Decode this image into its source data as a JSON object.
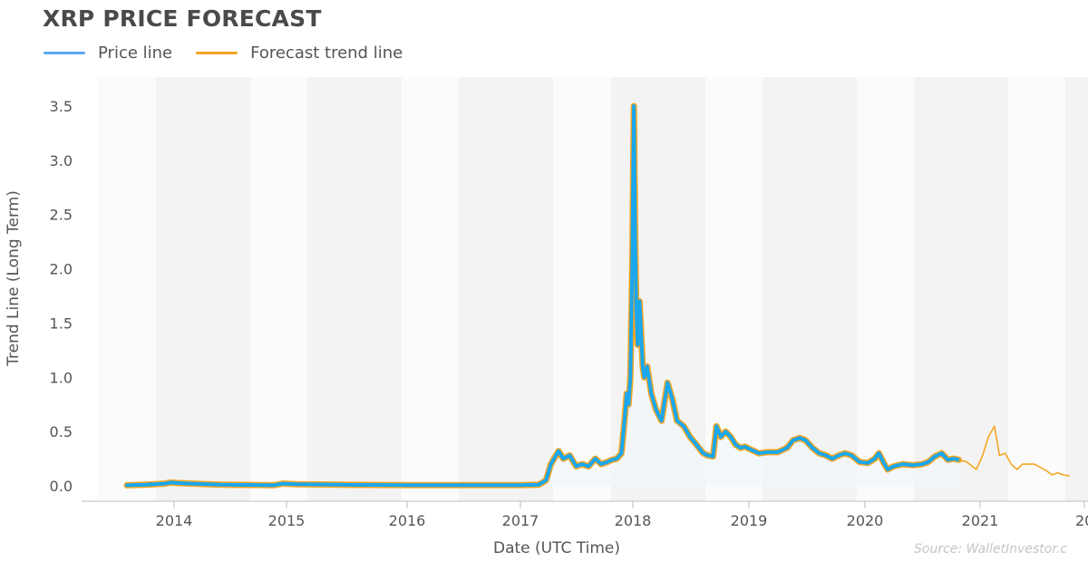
{
  "title": "XRP PRICE FORECAST",
  "legend": [
    {
      "label": "Price line",
      "color": "#5aa9f2"
    },
    {
      "label": "Forecast trend line",
      "color": "#f5a623"
    }
  ],
  "source": "Source: WalletInvestor.c",
  "chart_data": {
    "type": "line",
    "title": "XRP PRICE FORECAST",
    "xlabel": "Date (UTC Time)",
    "ylabel": "Trend Line (Long Term)",
    "ylim": [
      0,
      3.5
    ],
    "yticks": [
      "0.0",
      "0.5",
      "1.0",
      "1.5",
      "2.0",
      "2.5",
      "3.0",
      "3.5"
    ],
    "xticks": [
      "2014",
      "2015",
      "2016",
      "2017",
      "2018",
      "2019",
      "2020",
      "2021",
      "20"
    ],
    "grid": "alternating year bands",
    "legend_position": "top-left",
    "colors": {
      "price": "#1aa7ee",
      "forecast": "#f5a623",
      "band": "#f3f3f3"
    },
    "series": [
      {
        "name": "Price line",
        "x": [
          "2013-08-01",
          "2013-10-01",
          "2013-12-01",
          "2013-12-20",
          "2014-01-15",
          "2014-03-01",
          "2014-06-01",
          "2014-09-01",
          "2014-11-20",
          "2014-12-20",
          "2015-02-01",
          "2015-06-01",
          "2015-09-01",
          "2016-01-01",
          "2016-06-01",
          "2016-09-01",
          "2017-01-01",
          "2017-03-01",
          "2017-03-25",
          "2017-04-10",
          "2017-05-05",
          "2017-05-20",
          "2017-06-10",
          "2017-07-01",
          "2017-07-20",
          "2017-08-10",
          "2017-09-01",
          "2017-09-20",
          "2017-10-10",
          "2017-10-25",
          "2017-11-10",
          "2017-11-25",
          "2017-12-05",
          "2017-12-12",
          "2017-12-18",
          "2017-12-24",
          "2017-12-30",
          "2018-01-04",
          "2018-01-08",
          "2018-01-12",
          "2018-01-16",
          "2018-01-22",
          "2018-02-01",
          "2018-02-06",
          "2018-02-15",
          "2018-02-28",
          "2018-03-15",
          "2018-04-01",
          "2018-04-20",
          "2018-05-05",
          "2018-05-20",
          "2018-06-10",
          "2018-06-30",
          "2018-07-20",
          "2018-08-10",
          "2018-08-25",
          "2018-09-10",
          "2018-09-21",
          "2018-10-05",
          "2018-10-20",
          "2018-11-05",
          "2018-11-20",
          "2018-12-05",
          "2018-12-20",
          "2019-01-10",
          "2019-02-01",
          "2019-03-01",
          "2019-04-01",
          "2019-05-01",
          "2019-05-20",
          "2019-06-10",
          "2019-06-28",
          "2019-07-20",
          "2019-08-10",
          "2019-09-01",
          "2019-09-20",
          "2019-10-10",
          "2019-10-30",
          "2019-11-20",
          "2019-12-15",
          "2020-01-10",
          "2020-02-01",
          "2020-02-14",
          "2020-03-01",
          "2020-03-13",
          "2020-04-01",
          "2020-05-01",
          "2020-06-01",
          "2020-07-01",
          "2020-07-20",
          "2020-08-10",
          "2020-09-01",
          "2020-09-20",
          "2020-10-10",
          "2020-10-25"
        ],
        "values": [
          0.005,
          0.01,
          0.02,
          0.03,
          0.025,
          0.02,
          0.01,
          0.008,
          0.005,
          0.02,
          0.015,
          0.01,
          0.008,
          0.007,
          0.007,
          0.007,
          0.007,
          0.01,
          0.05,
          0.2,
          0.32,
          0.25,
          0.28,
          0.18,
          0.2,
          0.18,
          0.25,
          0.2,
          0.22,
          0.24,
          0.25,
          0.3,
          0.6,
          0.85,
          0.75,
          1.0,
          2.0,
          3.5,
          2.3,
          1.6,
          1.3,
          1.7,
          1.1,
          1.0,
          1.1,
          0.85,
          0.7,
          0.6,
          0.95,
          0.8,
          0.6,
          0.55,
          0.45,
          0.38,
          0.3,
          0.28,
          0.27,
          0.55,
          0.45,
          0.5,
          0.45,
          0.38,
          0.35,
          0.36,
          0.33,
          0.3,
          0.31,
          0.31,
          0.35,
          0.42,
          0.44,
          0.42,
          0.35,
          0.3,
          0.28,
          0.25,
          0.28,
          0.3,
          0.28,
          0.22,
          0.21,
          0.25,
          0.3,
          0.21,
          0.15,
          0.18,
          0.2,
          0.19,
          0.2,
          0.22,
          0.27,
          0.3,
          0.24,
          0.25,
          0.24
        ]
      },
      {
        "name": "Forecast trend line",
        "x": [
          "2020-10-25",
          "2020-11-20",
          "2020-12-20",
          "2021-01-10",
          "2021-01-30",
          "2021-02-20",
          "2021-03-10",
          "2021-03-30",
          "2021-04-20",
          "2021-05-10",
          "2021-05-30",
          "2021-06-20",
          "2021-07-10",
          "2021-07-30",
          "2021-08-20",
          "2021-09-10",
          "2021-09-30",
          "2021-10-20",
          "2021-11-10"
        ],
        "values": [
          0.24,
          0.22,
          0.15,
          0.28,
          0.45,
          0.55,
          0.28,
          0.3,
          0.2,
          0.15,
          0.2,
          0.2,
          0.2,
          0.17,
          0.14,
          0.1,
          0.12,
          0.1,
          0.09
        ]
      }
    ]
  }
}
